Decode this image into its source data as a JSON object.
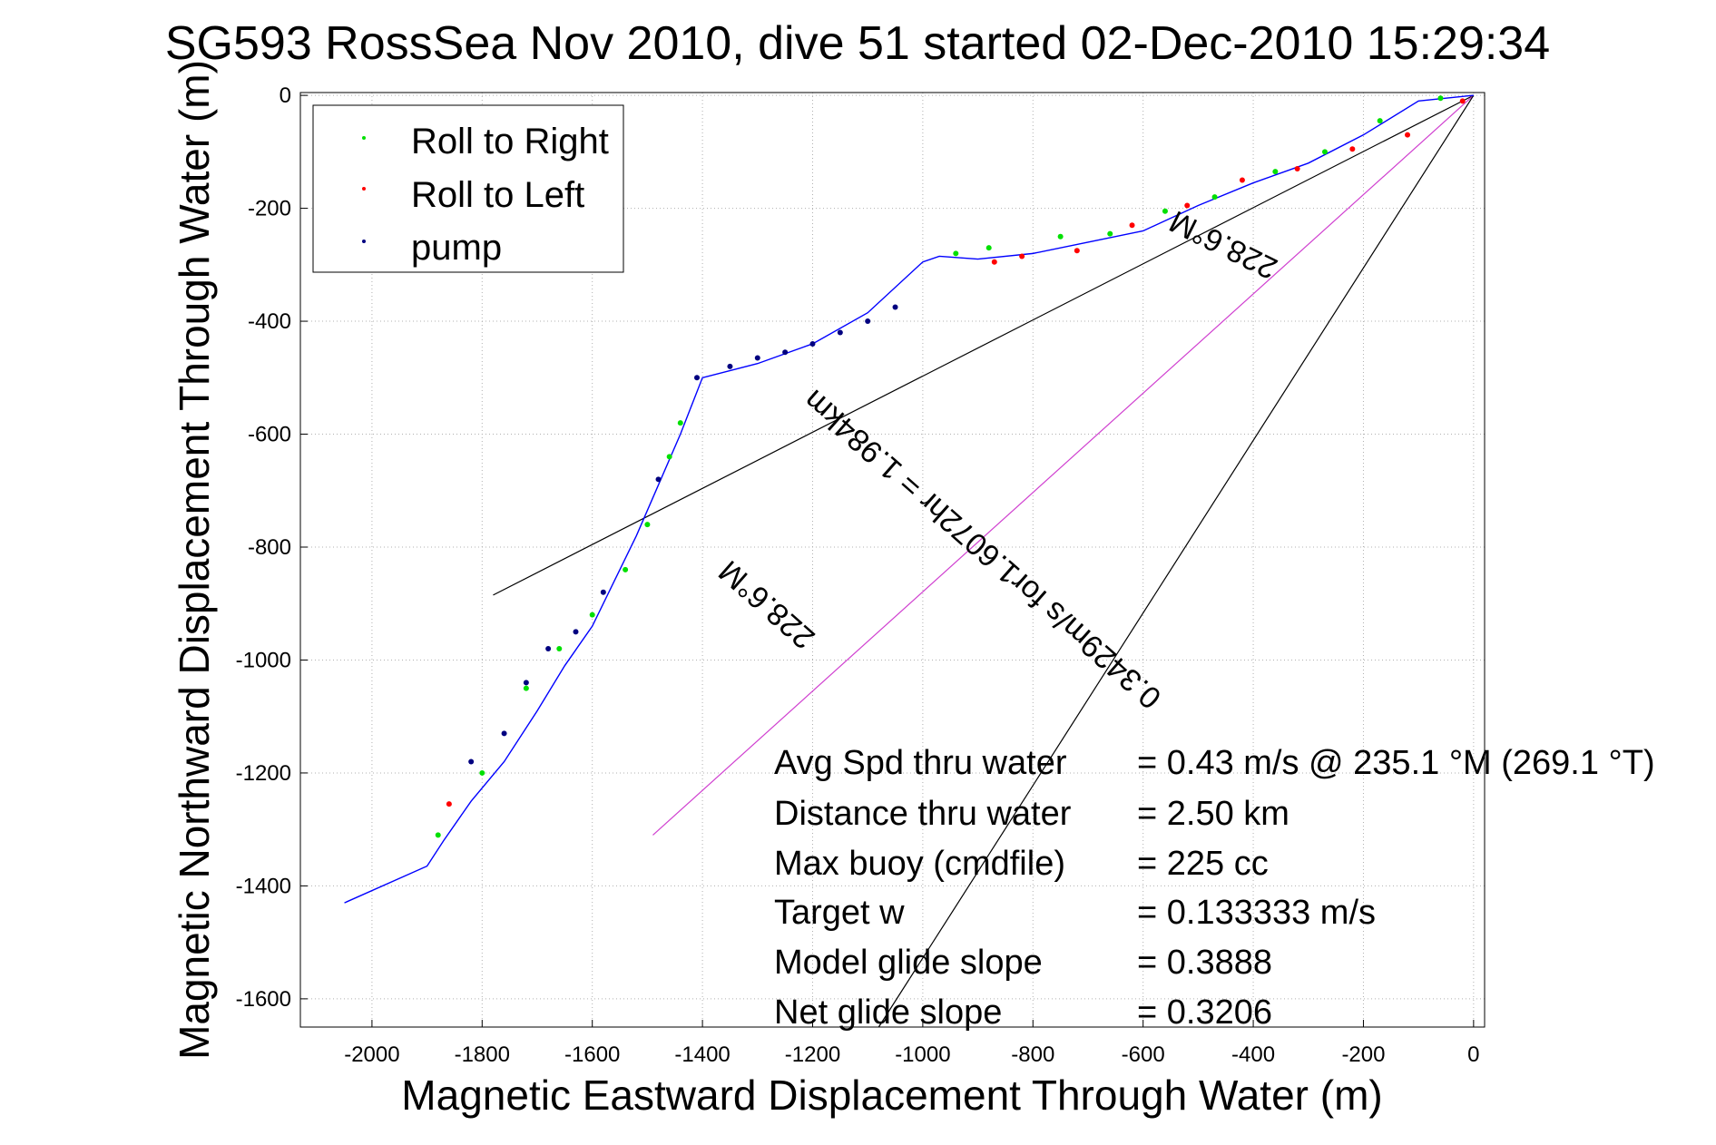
{
  "chart_data": {
    "type": "scatter",
    "title": "SG593 RossSea Nov 2010, dive 51 started 02-Dec-2010 15:29:34",
    "xlabel": "Magnetic Eastward Displacement Through Water (m)",
    "ylabel": "Magnetic Northward Displacement Through Water (m)",
    "xlim": [
      -2130,
      20
    ],
    "ylim": [
      -1650,
      5
    ],
    "grid": true,
    "legend_position": "top-left",
    "x_ticks": [
      -2000,
      -1800,
      -1600,
      -1400,
      -1200,
      -1000,
      -800,
      -600,
      -400,
      -200,
      0
    ],
    "y_ticks": [
      0,
      -200,
      -400,
      -600,
      -800,
      -1000,
      -1200,
      -1400,
      -1600
    ],
    "legend": [
      {
        "label": "Roll to Right",
        "color": "#00e000"
      },
      {
        "label": "Roll to Left",
        "color": "#ff0000"
      },
      {
        "label": "pump",
        "color": "#000080"
      }
    ],
    "series": [
      {
        "name": "track",
        "color": "#0000ff",
        "x": [
          0,
          -100,
          -200,
          -300,
          -400,
          -500,
          -600,
          -700,
          -800,
          -900,
          -970,
          -1000,
          -1100,
          -1200,
          -1300,
          -1400,
          -1440,
          -1480,
          -1520,
          -1560,
          -1600,
          -1650,
          -1700,
          -1760,
          -1820,
          -1870,
          -1900,
          -2050
        ],
        "y": [
          0,
          -10,
          -70,
          -120,
          -155,
          -195,
          -240,
          -260,
          -280,
          -290,
          -285,
          -295,
          -385,
          -440,
          -475,
          -500,
          -600,
          -690,
          -780,
          -860,
          -940,
          -1010,
          -1090,
          -1180,
          -1250,
          -1320,
          -1365,
          -1430
        ]
      },
      {
        "name": "Roll to Right",
        "color": "#00e000",
        "x": [
          -60,
          -170,
          -270,
          -360,
          -470,
          -560,
          -660,
          -750,
          -880,
          -940,
          -1440,
          -1460,
          -1500,
          -1540,
          -1600,
          -1660,
          -1720,
          -1800,
          -1880
        ],
        "y": [
          -5,
          -45,
          -100,
          -135,
          -180,
          -205,
          -245,
          -250,
          -270,
          -280,
          -580,
          -640,
          -760,
          -840,
          -920,
          -980,
          -1050,
          -1200,
          -1310
        ]
      },
      {
        "name": "Roll to Left",
        "color": "#ff0000",
        "x": [
          -20,
          -120,
          -220,
          -320,
          -420,
          -520,
          -620,
          -720,
          -820,
          -870,
          -1860
        ],
        "y": [
          -10,
          -70,
          -95,
          -130,
          -150,
          -195,
          -230,
          -275,
          -285,
          -295,
          -1255
        ]
      },
      {
        "name": "pump",
        "color": "#000080",
        "x": [
          -1050,
          -1100,
          -1150,
          -1200,
          -1250,
          -1300,
          -1350,
          -1410,
          -1480,
          -1580,
          -1630,
          -1680,
          -1720,
          -1760,
          -1820
        ],
        "y": [
          -375,
          -400,
          -420,
          -440,
          -455,
          -465,
          -480,
          -500,
          -680,
          -880,
          -950,
          -980,
          -1040,
          -1130,
          -1180
        ]
      }
    ],
    "reference_lines": [
      {
        "x": [
          0,
          -1780
        ],
        "y": [
          0,
          -885
        ],
        "color": "#000000"
      },
      {
        "x": [
          0,
          -1490
        ],
        "y": [
          0,
          -1310
        ],
        "color": "#d040d0"
      },
      {
        "x": [
          0,
          -1080
        ],
        "y": [
          0,
          -1650
        ],
        "color": "#000000"
      }
    ],
    "annotations": {
      "heading_upper": "228.6°M",
      "speed_line": "0.3429m/s for1.6072hr = 1.984km",
      "heading_lower": "228.6°M"
    },
    "stats": [
      {
        "label": "Avg Spd thru water",
        "value": "=  0.43 m/s @ 235.1 °M (269.1 °T)"
      },
      {
        "label": "Distance thru water",
        "value": "=  2.50 km"
      },
      {
        "label": "Max buoy (cmdfile)",
        "value": "= 225 cc"
      },
      {
        "label": "Target w",
        "value": "= 0.133333 m/s"
      },
      {
        "label": "Model glide slope",
        "value": "= 0.3888"
      },
      {
        "label": "Net glide slope",
        "value": "= 0.3206"
      }
    ]
  }
}
